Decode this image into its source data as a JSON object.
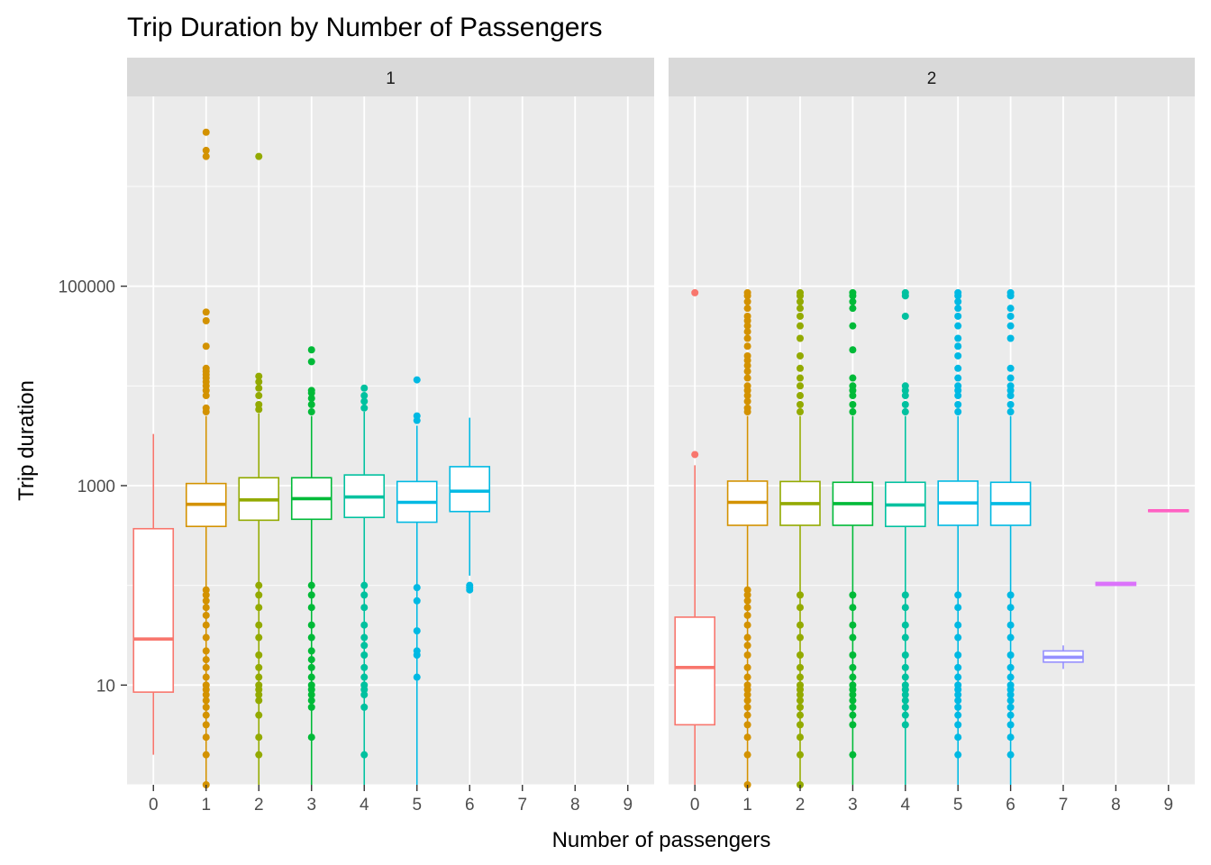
{
  "chart_data": {
    "type": "boxplot",
    "title": "Trip Duration by Number of Passengers",
    "xlabel": "Number of passengers",
    "ylabel": "Trip duration",
    "y_scale": "log10",
    "ylim": [
      1,
      8000000
    ],
    "y_ticks": [
      10,
      1000,
      100000
    ],
    "y_tick_labels": [
      "10",
      "1000",
      "100000"
    ],
    "x_categories": [
      "0",
      "1",
      "2",
      "3",
      "4",
      "5",
      "6",
      "7",
      "8",
      "9"
    ],
    "colors": {
      "0": "#F8766D",
      "1": "#D39200",
      "2": "#93AA00",
      "3": "#00BA38",
      "4": "#00C19F",
      "5": "#00B9E3",
      "6": "#00B9E3",
      "7": "#9590FF",
      "8": "#DB72FB",
      "9": "#FF61C3"
    },
    "panels": [
      {
        "strip": "1",
        "boxes": [
          {
            "x": "0",
            "q1": 8.5,
            "median": 29,
            "q3": 370,
            "whisker_low": 2,
            "whisker_high": 3300,
            "outliers": []
          },
          {
            "x": "1",
            "q1": 390,
            "median": 650,
            "q3": 1050,
            "whisker_low": 1,
            "whisker_high": 5000,
            "outliers": [
              1,
              2,
              3,
              4,
              5,
              6,
              7,
              8,
              9,
              10,
              12,
              15,
              18,
              22,
              30,
              40,
              50,
              60,
              70,
              80,
              90,
              5500,
              6000,
              8000,
              9000,
              10000,
              11000,
              12000,
              13000,
              14000,
              15000,
              25000,
              45000,
              55000,
              2000000,
              2300000,
              3500000
            ]
          },
          {
            "x": "2",
            "q1": 450,
            "median": 720,
            "q3": 1200,
            "whisker_low": 1,
            "whisker_high": 5300,
            "outliers": [
              2,
              3,
              5,
              7,
              8,
              9,
              10,
              12,
              15,
              20,
              30,
              40,
              60,
              80,
              100,
              5800,
              6500,
              8000,
              9500,
              11000,
              12500,
              2000000
            ]
          },
          {
            "x": "3",
            "q1": 460,
            "median": 740,
            "q3": 1200,
            "whisker_low": 1,
            "whisker_high": 5000,
            "outliers": [
              3,
              6,
              7,
              8,
              9,
              10,
              12,
              15,
              18,
              22,
              30,
              40,
              60,
              80,
              100,
              5500,
              6500,
              7500,
              8500,
              9000,
              17500,
              23000
            ]
          },
          {
            "x": "4",
            "q1": 480,
            "median": 770,
            "q3": 1280,
            "whisker_low": 1,
            "whisker_high": 5500,
            "outliers": [
              2,
              6,
              8,
              9,
              10,
              12,
              15,
              20,
              25,
              30,
              40,
              60,
              80,
              100,
              6000,
              7000,
              8000,
              9500
            ]
          },
          {
            "x": "5",
            "q1": 430,
            "median": 680,
            "q3": 1100,
            "whisker_low": 1,
            "whisker_high": 4000,
            "outliers": [
              12,
              20,
              22,
              35,
              70,
              95,
              4500,
              5000,
              11500
            ]
          },
          {
            "x": "6",
            "q1": 550,
            "median": 880,
            "q3": 1550,
            "whisker_low": 125,
            "whisker_high": 4800,
            "outliers": [
              90,
              95,
              100
            ]
          }
        ]
      },
      {
        "strip": "2",
        "boxes": [
          {
            "x": "0",
            "q1": 4,
            "median": 15,
            "q3": 48,
            "whisker_low": 1,
            "whisker_high": 1600,
            "outliers": [
              2050,
              86000
            ]
          },
          {
            "x": "1",
            "q1": 400,
            "median": 680,
            "q3": 1110,
            "whisker_low": 1,
            "whisker_high": 5000,
            "outliers": [
              1,
              2,
              3,
              4,
              5,
              6,
              7,
              8,
              9,
              10,
              12,
              15,
              20,
              25,
              30,
              40,
              50,
              60,
              70,
              80,
              90,
              5500,
              6000,
              7000,
              8000,
              9000,
              10000,
              12000,
              14000,
              16000,
              18000,
              20000,
              25000,
              30000,
              35000,
              40000,
              45000,
              50000,
              60000,
              70000,
              80000,
              86000
            ]
          },
          {
            "x": "2",
            "q1": 400,
            "median": 660,
            "q3": 1100,
            "whisker_low": 1,
            "whisker_high": 5000,
            "outliers": [
              1,
              2,
              3,
              4,
              5,
              6,
              7,
              8,
              9,
              10,
              12,
              15,
              20,
              30,
              40,
              60,
              80,
              5500,
              6500,
              8000,
              10000,
              12000,
              15000,
              20000,
              30000,
              40000,
              50000,
              60000,
              70000,
              80000,
              86000
            ]
          },
          {
            "x": "3",
            "q1": 400,
            "median": 660,
            "q3": 1080,
            "whisker_low": 1,
            "whisker_high": 5000,
            "outliers": [
              2,
              4,
              5,
              6,
              7,
              8,
              9,
              10,
              12,
              15,
              20,
              30,
              40,
              60,
              80,
              5500,
              6500,
              8000,
              9000,
              10000,
              12000,
              23000,
              40000,
              60000,
              70000,
              80000,
              86000
            ]
          },
          {
            "x": "4",
            "q1": 390,
            "median": 640,
            "q3": 1080,
            "whisker_low": 1,
            "whisker_high": 5000,
            "outliers": [
              4,
              5,
              6,
              7,
              8,
              9,
              10,
              12,
              15,
              20,
              30,
              40,
              60,
              80,
              5500,
              6500,
              8000,
              9000,
              10000,
              50000,
              80000,
              86000
            ]
          },
          {
            "x": "5",
            "q1": 400,
            "median": 670,
            "q3": 1110,
            "whisker_low": 1,
            "whisker_high": 5000,
            "outliers": [
              2,
              3,
              4,
              5,
              6,
              7,
              8,
              9,
              10,
              12,
              15,
              20,
              30,
              40,
              60,
              80,
              5500,
              6500,
              8000,
              9000,
              10000,
              12000,
              15000,
              20000,
              25000,
              30000,
              40000,
              50000,
              60000,
              70000,
              80000,
              86000
            ]
          },
          {
            "x": "6",
            "q1": 400,
            "median": 660,
            "q3": 1080,
            "whisker_low": 1,
            "whisker_high": 5000,
            "outliers": [
              2,
              3,
              4,
              5,
              6,
              7,
              8,
              9,
              10,
              12,
              15,
              20,
              30,
              40,
              60,
              80,
              5500,
              6500,
              8000,
              9000,
              10000,
              12000,
              15000,
              30000,
              40000,
              50000,
              60000,
              80000,
              86000
            ]
          },
          {
            "x": "7",
            "q1": 17,
            "median": 19,
            "q3": 22,
            "whisker_low": 14.5,
            "whisker_high": 25,
            "outliers": []
          },
          {
            "x": "8",
            "q1": 100,
            "median": 104,
            "q3": 107,
            "whisker_low": 100,
            "whisker_high": 107,
            "outliers": []
          },
          {
            "x": "9",
            "q1": 550,
            "median": 560,
            "q3": 570,
            "whisker_low": 550,
            "whisker_high": 570,
            "outliers": []
          }
        ]
      }
    ]
  }
}
